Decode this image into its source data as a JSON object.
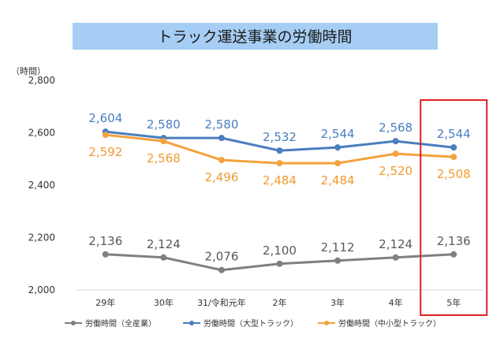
{
  "chart_data": {
    "type": "line",
    "title": "トラック運送事業の労働時間",
    "y_unit": "（時間）",
    "categories": [
      "29年",
      "30年",
      "31/令和元年",
      "2年",
      "3年",
      "4年",
      "5年"
    ],
    "ylim": [
      2000,
      2800
    ],
    "yticks": [
      "2,000",
      "2,200",
      "2,400",
      "2,600",
      "2,800"
    ],
    "ytick_values": [
      2000,
      2200,
      2400,
      2600,
      2800
    ],
    "grid": false,
    "legend_position": "bottom",
    "highlight_category": "5年",
    "highlight_color": "#e02020",
    "series": [
      {
        "name": "労働時間（全産業）",
        "color": "#808080",
        "label_color": "#595959",
        "label_position": "above",
        "values": [
          2136,
          2124,
          2076,
          2100,
          2112,
          2124,
          2136
        ],
        "labels": [
          "2,136",
          "2,124",
          "2,076",
          "2,100",
          "2,112",
          "2,124",
          "2,136"
        ]
      },
      {
        "name": "労働時間（大型トラック）",
        "color": "#4a7ebf",
        "label_color": "#4a7ebf",
        "label_position": "above",
        "values": [
          2604,
          2580,
          2580,
          2532,
          2544,
          2568,
          2544
        ],
        "labels": [
          "2,604",
          "2,580",
          "2,580",
          "2,532",
          "2,544",
          "2,568",
          "2,544"
        ]
      },
      {
        "name": "労働時間（中小型トラック）",
        "color": "#f4a23e",
        "label_color": "#f09a30",
        "label_position": "below",
        "values": [
          2592,
          2568,
          2496,
          2484,
          2484,
          2520,
          2508
        ],
        "labels": [
          "2,592",
          "2,568",
          "2,496",
          "2,484",
          "2,484",
          "2,520",
          "2,508"
        ]
      }
    ]
  }
}
